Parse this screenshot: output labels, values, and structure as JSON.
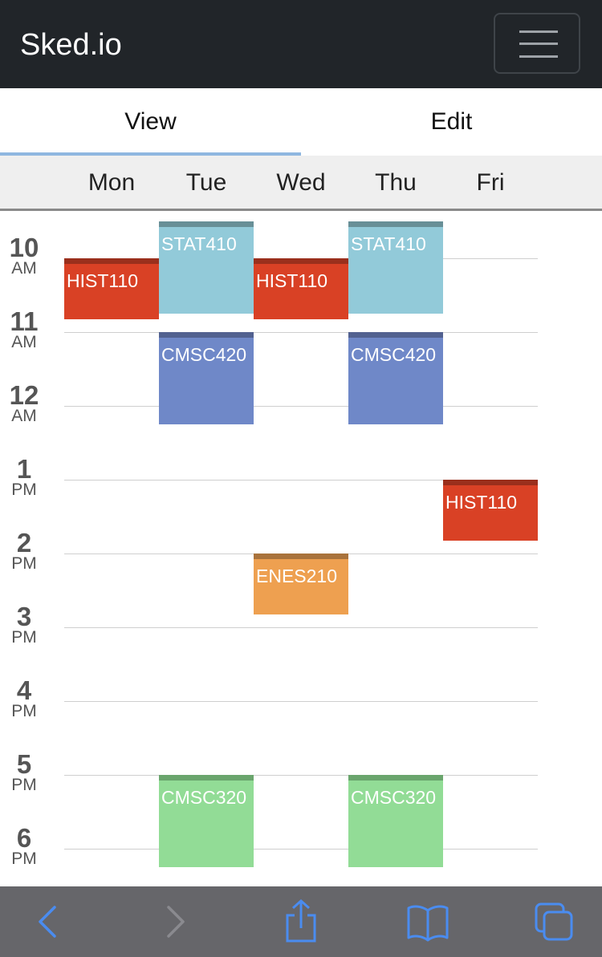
{
  "app": {
    "brand": "Sked.io"
  },
  "tabs": [
    {
      "label": "View",
      "active": true
    },
    {
      "label": "Edit",
      "active": false
    }
  ],
  "days": [
    "Mon",
    "Tue",
    "Wed",
    "Thu",
    "Fri"
  ],
  "hours": [
    {
      "hour": "10",
      "period": "AM"
    },
    {
      "hour": "11",
      "period": "AM"
    },
    {
      "hour": "12",
      "period": "AM"
    },
    {
      "hour": "1",
      "period": "PM"
    },
    {
      "hour": "2",
      "period": "PM"
    },
    {
      "hour": "3",
      "period": "PM"
    },
    {
      "hour": "4",
      "period": "PM"
    },
    {
      "hour": "5",
      "period": "PM"
    },
    {
      "hour": "6",
      "period": "PM"
    }
  ],
  "events": [
    {
      "name": "HIST110",
      "day": 0,
      "start": 10.0,
      "end": 10.83,
      "color": "#d94125",
      "stripe": "#9a2f1c"
    },
    {
      "name": "STAT410",
      "day": 1,
      "start": 9.5,
      "end": 10.75,
      "color": "#92cad9",
      "stripe": "#688f97"
    },
    {
      "name": "HIST110",
      "day": 2,
      "start": 10.0,
      "end": 10.83,
      "color": "#d94125",
      "stripe": "#9a2f1c"
    },
    {
      "name": "STAT410",
      "day": 3,
      "start": 9.5,
      "end": 10.75,
      "color": "#92cad9",
      "stripe": "#688f97"
    },
    {
      "name": "CMSC420",
      "day": 1,
      "start": 11.0,
      "end": 12.25,
      "color": "#6f88c8",
      "stripe": "#526190"
    },
    {
      "name": "CMSC420",
      "day": 3,
      "start": 11.0,
      "end": 12.25,
      "color": "#6f88c8",
      "stripe": "#526190"
    },
    {
      "name": "HIST110",
      "day": 4,
      "start": 13.0,
      "end": 13.83,
      "color": "#d94125",
      "stripe": "#9a2f1c"
    },
    {
      "name": "ENES210",
      "day": 2,
      "start": 14.0,
      "end": 14.83,
      "color": "#eea050",
      "stripe": "#a9733c"
    },
    {
      "name": "CMSC320",
      "day": 1,
      "start": 17.0,
      "end": 18.25,
      "color": "#92dc96",
      "stripe": "#6aa56d"
    },
    {
      "name": "CMSC320",
      "day": 3,
      "start": 17.0,
      "end": 18.25,
      "color": "#92dc96",
      "stripe": "#6aa56d"
    }
  ],
  "browser_toolbar": {
    "back": "chevron-left-icon",
    "forward": "chevron-right-icon",
    "share": "share-icon",
    "bookmarks": "book-icon",
    "tabs": "tabs-icon",
    "accent": "#4a8cf0"
  }
}
